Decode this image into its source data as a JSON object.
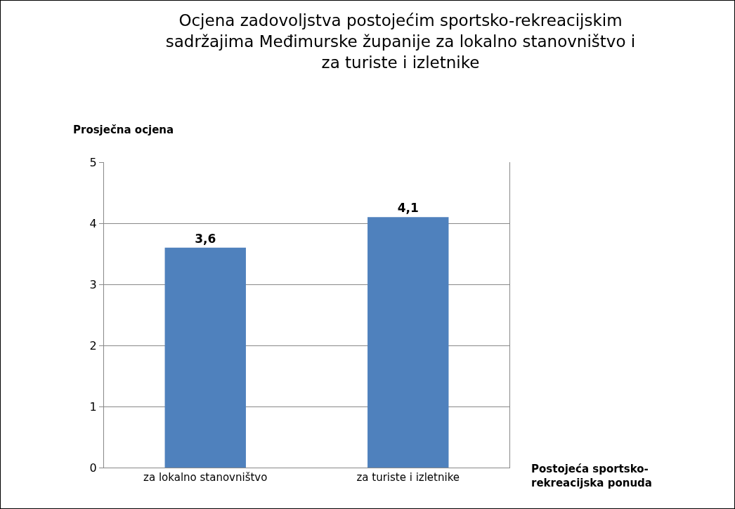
{
  "chart_data": {
    "type": "bar",
    "title": "Ocjena zadovoljstva postojećim sportsko-rekreacijskim sadržajima Međimurske županije za lokalno stanovništvo i za turiste i izletnike",
    "ylabel": "Prosječna ocjena",
    "xlabel": "Postojeća sportsko-rekreacijska ponuda",
    "categories": [
      "za lokalno stanovništvo",
      "za turiste i izletnike"
    ],
    "values": [
      3.6,
      4.1
    ],
    "color": "#4f81bd",
    "value_labels": [
      "3,6",
      "4,1"
    ],
    "ylim": [
      0,
      5
    ],
    "yticks": [
      0,
      1,
      2,
      3,
      4,
      5
    ],
    "grid": "y"
  }
}
